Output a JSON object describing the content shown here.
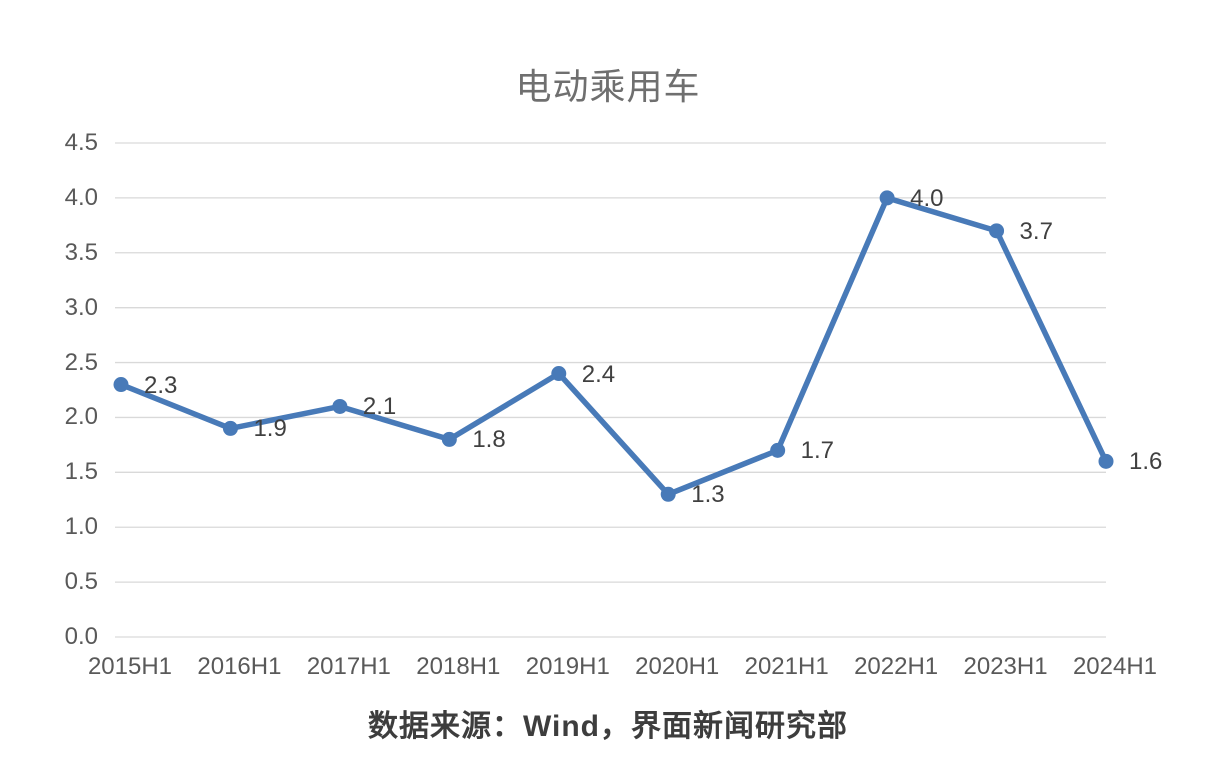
{
  "chart_data": {
    "type": "line",
    "title": "电动乘用车",
    "categories": [
      "2015H1",
      "2016H1",
      "2017H1",
      "2018H1",
      "2019H1",
      "2020H1",
      "2021H1",
      "2022H1",
      "2023H1",
      "2024H1"
    ],
    "series": [
      {
        "name": "电动乘用车",
        "values": [
          2.3,
          1.9,
          2.1,
          1.8,
          2.4,
          1.3,
          1.7,
          4.0,
          3.7,
          1.6
        ]
      }
    ],
    "data_labels": [
      "2.3",
      "1.9",
      "2.1",
      "1.8",
      "2.4",
      "1.3",
      "1.7",
      "4.0",
      "3.7",
      "1.6"
    ],
    "xlabel": "",
    "ylabel": "",
    "ylim": [
      0,
      4.5
    ],
    "ytick_step": 0.5,
    "ytick_labels": [
      "0.0",
      "0.5",
      "1.0",
      "1.5",
      "2.0",
      "2.5",
      "3.0",
      "3.5",
      "4.0",
      "4.5"
    ],
    "grid": "horizontal-on",
    "legend": "none",
    "colors": {
      "line": "#487ab8",
      "marker": "#487ab8",
      "gridline": "#d9d9d9",
      "axis_text": "#595959",
      "data_label_text": "#404040",
      "title_text": "#6f6f6f",
      "caption_text": "#3d3d3d",
      "background": "#ffffff"
    }
  },
  "footer": {
    "source_text": "数据来源：Wind，界面新闻研究部"
  }
}
